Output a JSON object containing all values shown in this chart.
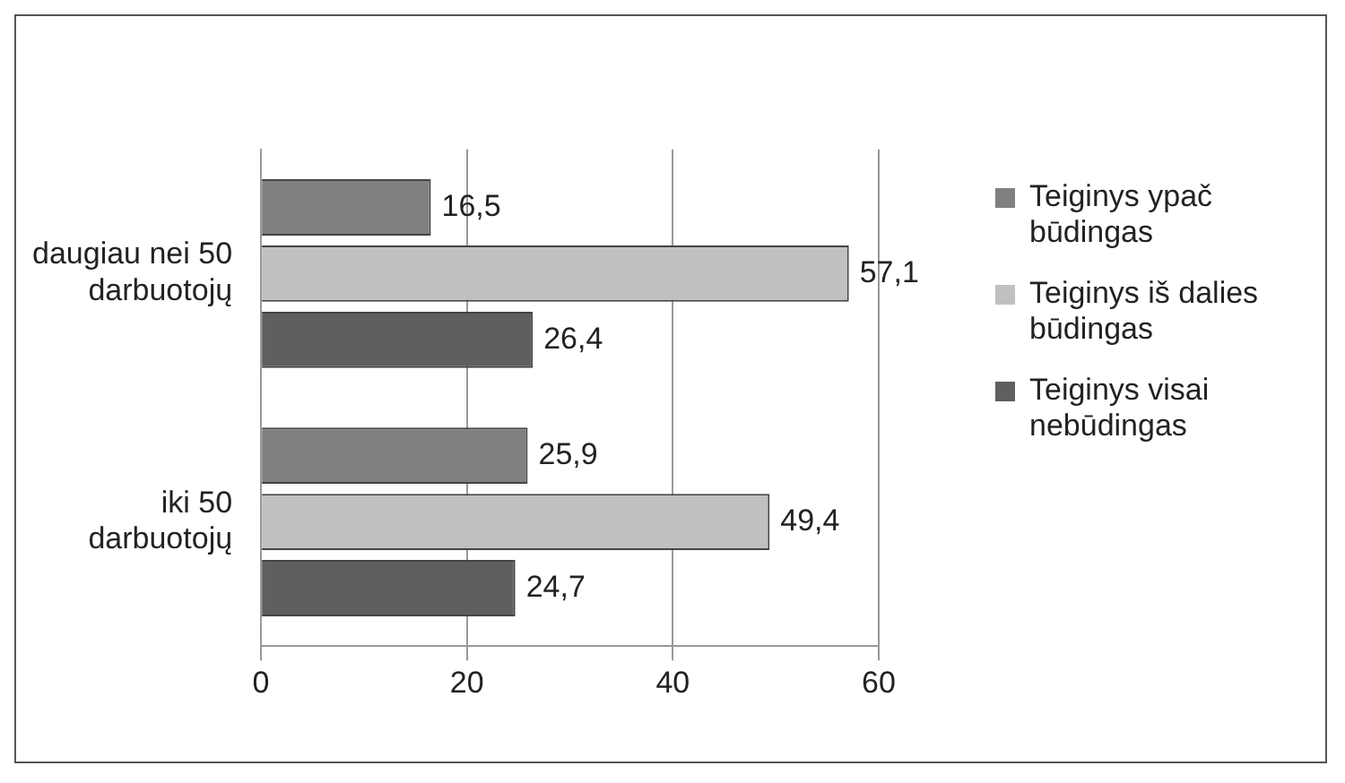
{
  "chart_data": {
    "type": "bar",
    "orientation": "horizontal",
    "categories": [
      "daugiau nei 50 darbuotojų",
      "iki 50 darbuotojų"
    ],
    "series": [
      {
        "name": "Teiginys ypač būdingas",
        "color": "#808080",
        "values": [
          16.5,
          25.9
        ],
        "value_labels": [
          "16,5",
          "25,9"
        ]
      },
      {
        "name": "Teiginys iš dalies būdingas",
        "color": "#c0c0c0",
        "values": [
          57.1,
          49.4
        ],
        "value_labels": [
          "57,1",
          "49,4"
        ]
      },
      {
        "name": "Teiginys visai nebūdingas",
        "color": "#5f5f5f",
        "values": [
          26.4,
          24.7
        ],
        "value_labels": [
          "26,4",
          "24,7"
        ]
      }
    ],
    "xlim": [
      0,
      60
    ],
    "xticks": [
      0,
      20,
      40,
      60
    ],
    "grid": "x",
    "legend": "right"
  }
}
